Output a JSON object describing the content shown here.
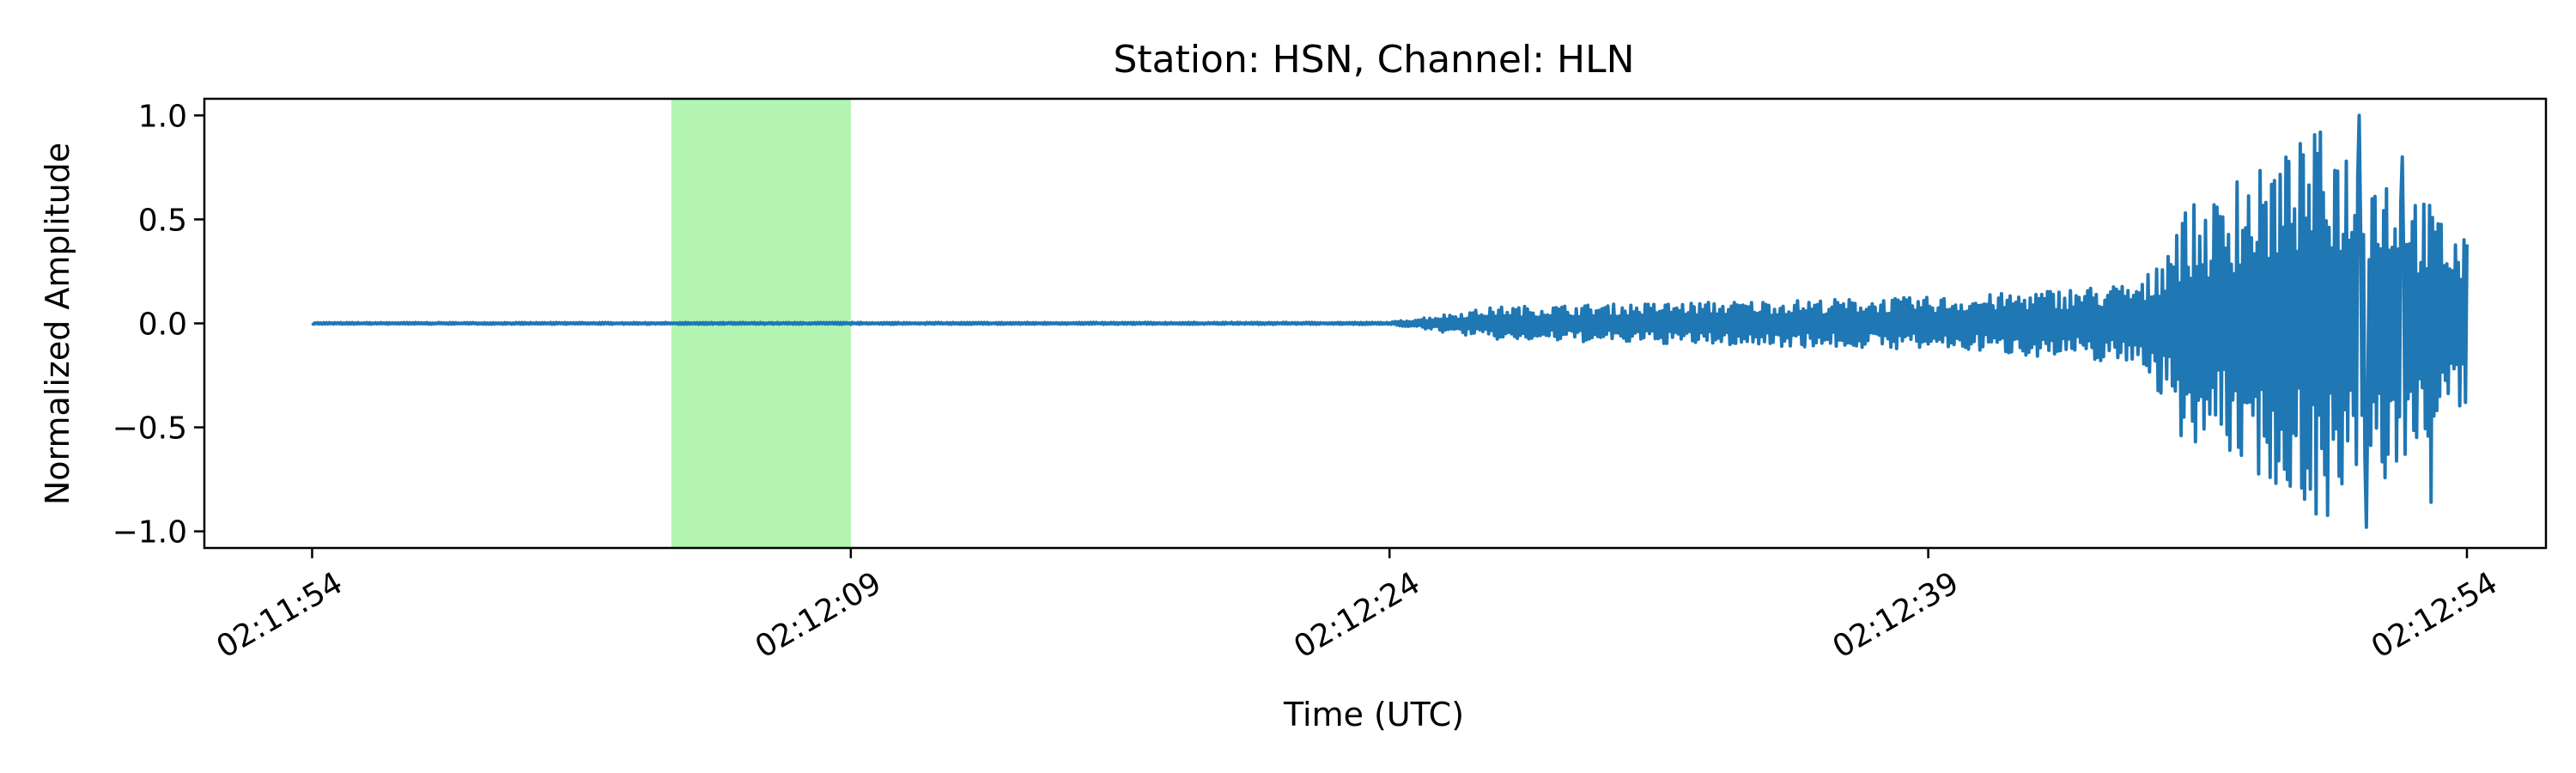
{
  "chart_data": {
    "type": "line",
    "title": "Station: HSN, Channel: HLN",
    "xlabel": "Time (UTC)",
    "ylabel": "Normalized Amplitude",
    "xlim": [
      "02:11:51",
      "02:12:56.2"
    ],
    "ylim": [
      -1.08,
      1.08
    ],
    "grid": false,
    "legend": "none",
    "x_ticks": [
      "02:11:54",
      "02:12:09",
      "02:12:24",
      "02:12:39",
      "02:12:54"
    ],
    "y_ticks": [
      "1.0",
      "0.5",
      "0.0",
      "−0.5",
      "−1.0"
    ],
    "y_tick_values": [
      1.0,
      0.5,
      0.0,
      -0.5,
      -1.0
    ],
    "highlight_span": {
      "start": "02:12:04",
      "end": "02:12:09",
      "color": "#b3f4b2"
    },
    "series": [
      {
        "color": "#1f77b4",
        "x_range": [
          "02:11:54",
          "02:12:54"
        ],
        "envelope": [
          {
            "t": "02:11:54",
            "amp": 0.004
          },
          {
            "t": "02:12:24",
            "amp": 0.005
          },
          {
            "t": "02:12:25",
            "amp": 0.03
          },
          {
            "t": "02:12:27",
            "amp": 0.08
          },
          {
            "t": "02:12:32",
            "amp": 0.1
          },
          {
            "t": "02:12:40",
            "amp": 0.13
          },
          {
            "t": "02:12:45",
            "amp": 0.2
          },
          {
            "t": "02:12:46",
            "amp": 0.55
          },
          {
            "t": "02:12:47",
            "amp": 0.6
          },
          {
            "t": "02:12:50",
            "amp": 0.95
          },
          {
            "t": "02:12:52",
            "amp": 0.75
          },
          {
            "t": "02:12:54",
            "amp": 0.4
          }
        ],
        "peaks": [
          {
            "t": "02:12:47.6",
            "y": 0.68
          },
          {
            "t": "02:12:49.2",
            "y": 0.55
          },
          {
            "t": "02:12:51.0",
            "y": 1.0
          },
          {
            "t": "02:12:51.2",
            "y": -0.98
          },
          {
            "t": "02:12:52.2",
            "y": 0.8
          },
          {
            "t": "02:12:53.0",
            "y": -0.86
          },
          {
            "t": "02:12:54.0",
            "y": 0.38
          }
        ]
      }
    ]
  }
}
